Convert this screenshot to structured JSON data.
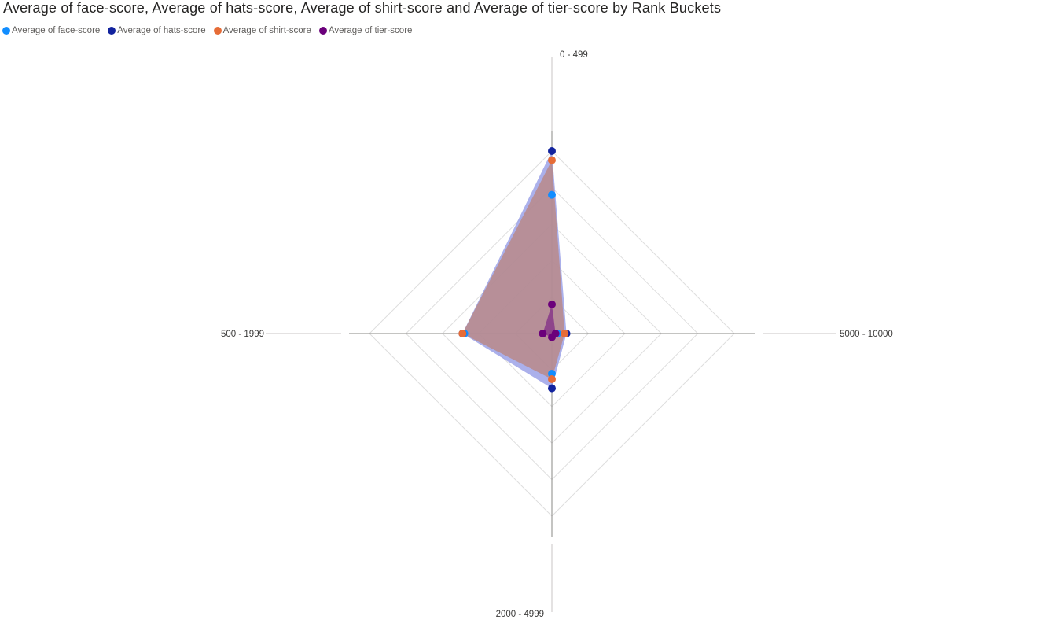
{
  "chart_data": {
    "type": "radar",
    "title": "Average of face-score, Average of hats-score, Average of shirt-score and Average of tier-score by Rank Buckets",
    "categories": [
      "0 - 499",
      "5000 - 10000",
      "2000 - 4999",
      "500 - 1999"
    ],
    "rmax": 1,
    "rings": 5,
    "legend_position": "top-left",
    "series": [
      {
        "name": "Average of face-score",
        "color": "#118DFF",
        "values": [
          0.76,
          0.03,
          0.22,
          0.48
        ]
      },
      {
        "name": "Average of hats-score",
        "color": "#12239E",
        "values": [
          1.0,
          0.08,
          0.3,
          0.49
        ]
      },
      {
        "name": "Average of shirt-score",
        "color": "#E66C37",
        "values": [
          0.95,
          0.07,
          0.25,
          0.49
        ]
      },
      {
        "name": "Average of tier-score",
        "color": "#6B007B",
        "values": [
          0.16,
          0.02,
          0.02,
          0.05
        ]
      }
    ],
    "fills": [
      {
        "series": "Average of hats-score",
        "color": "#8f95e4",
        "opacity": 0.75
      },
      {
        "series": "Average of shirt-score",
        "color": "#b98a8a",
        "opacity": 0.85
      },
      {
        "series": "Average of tier-score",
        "color": "#8a3c8a",
        "opacity": 0.9
      }
    ]
  }
}
